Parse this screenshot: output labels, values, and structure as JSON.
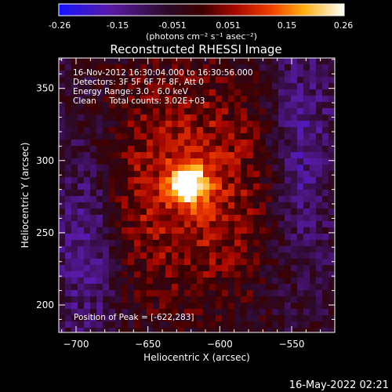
{
  "colorbar": {
    "ticks": [
      "-0.26",
      "-0.15",
      "-0.051",
      "0.051",
      "0.15",
      "0.26"
    ],
    "units": "(photons cm⁻² s⁻¹ asec⁻²)",
    "range": [
      -0.26,
      0.26
    ],
    "colors": [
      "#1a1aff",
      "#4b1b9a",
      "#2a0a2a",
      "#7a0000",
      "#e02000",
      "#ff9a00",
      "#ffff60",
      "#ffffff"
    ]
  },
  "chart_data": {
    "type": "heatmap",
    "title": "Reconstructed RHESSI Image",
    "xlabel": "Heliocentric X (arcsec)",
    "ylabel": "Heliocentric Y (arcsec)",
    "xlim": [
      -712,
      -520
    ],
    "ylim": [
      181,
      371
    ],
    "x_ticks": [
      -700,
      -650,
      -600,
      -550
    ],
    "y_ticks": [
      200,
      250,
      300,
      350
    ],
    "x_tick_labels": [
      "−700",
      "−650",
      "−600",
      "−550"
    ],
    "y_tick_labels": [
      "200",
      "250",
      "300",
      "350"
    ],
    "annotations": [
      "16-Nov-2012 16:30:04.000 to 16:30:56.000",
      "Detectors: 3F 5F 6F 7F 8F, Att 0",
      "Energy Range: 3.0 - 6.0 keV",
      "Clean     Total counts: 3.02E+03"
    ],
    "peak_text": "Position of Peak = [-622,283]",
    "peak": {
      "x": -622,
      "y": 283,
      "value": 0.26
    }
  },
  "footer_timestamp": "16-May-2022 02:21"
}
